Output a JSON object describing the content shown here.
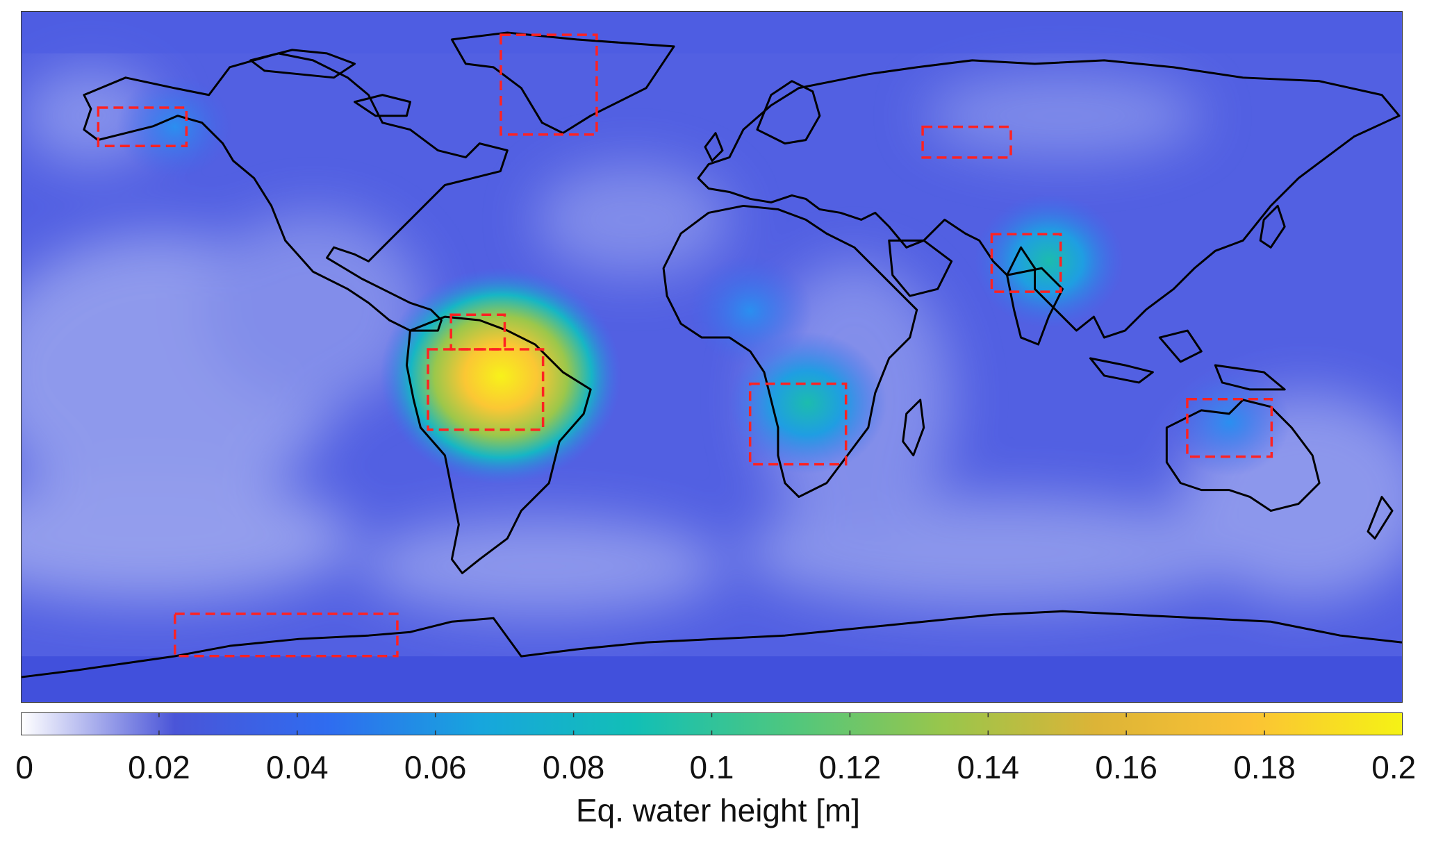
{
  "map": {
    "projection": "equirectangular",
    "extent": {
      "lon": [
        -180,
        180
      ],
      "lat": [
        -90,
        90
      ]
    },
    "field_name": "equivalent water height",
    "colormap": "parula (white to blue to yellow)",
    "background_value": 0.02,
    "hotspots": [
      {
        "region": "Amazon basin",
        "lon": -55,
        "lat": -5,
        "value": 0.19
      },
      {
        "region": "Ganges-Brahmaputra",
        "lon": 88,
        "lat": 25,
        "value": 0.08
      },
      {
        "region": "Zambezi basin",
        "lon": 25,
        "lat": -12,
        "value": 0.09
      },
      {
        "region": "Sahel",
        "lon": 10,
        "lat": 12,
        "value": 0.05
      },
      {
        "region": "Northern Australia",
        "lon": 135,
        "lat": -17,
        "value": 0.045
      },
      {
        "region": "Alaska",
        "lon": -140,
        "lat": 60,
        "value": 0.04
      }
    ],
    "dashed_boxes": [
      {
        "region": "Alaska",
        "lon": [
          -160,
          -137
        ],
        "lat": [
          55,
          65
        ],
        "color": "#ff2222"
      },
      {
        "region": "Greenland",
        "lon": [
          -55,
          -30
        ],
        "lat": [
          58,
          84
        ],
        "color": "#ff2222"
      },
      {
        "region": "Western Siberia",
        "lon": [
          55,
          78
        ],
        "lat": [
          52,
          60
        ],
        "color": "#ff2222"
      },
      {
        "region": "Orinoco",
        "lon": [
          -68,
          -54
        ],
        "lat": [
          2,
          11
        ],
        "color": "#ff2222"
      },
      {
        "region": "Amazon",
        "lon": [
          -74,
          -44
        ],
        "lat": [
          -19,
          2
        ],
        "color": "#ff2222"
      },
      {
        "region": "Zambezi",
        "lon": [
          10,
          35
        ],
        "lat": [
          -28,
          -7
        ],
        "color": "#ff2222"
      },
      {
        "region": "Ganges",
        "lon": [
          73,
          91
        ],
        "lat": [
          17,
          32
        ],
        "color": "#ff2222"
      },
      {
        "region": "Northern Australia",
        "lon": [
          124,
          146
        ],
        "lat": [
          -26,
          -11
        ],
        "color": "#ff2222"
      },
      {
        "region": "West Antarctica",
        "lon": [
          -140,
          -82
        ],
        "lat": [
          -78,
          -67
        ],
        "color": "#ff2222"
      }
    ]
  },
  "colorbar": {
    "min": 0,
    "max": 0.2,
    "ticks": [
      "0",
      "0.02",
      "0.04",
      "0.06",
      "0.08",
      "0.1",
      "0.12",
      "0.14",
      "0.16",
      "0.18",
      "0.2"
    ],
    "tick_values": [
      0,
      0.02,
      0.04,
      0.06,
      0.08,
      0.1,
      0.12,
      0.14,
      0.16,
      0.18,
      0.2
    ],
    "label": "Eq. water height [m]",
    "stops": [
      "#ffffff",
      "#4a55d8",
      "#2f6cf0",
      "#17a6dd",
      "#12bfb6",
      "#4ec77f",
      "#98c64c",
      "#dcb437",
      "#fbc235",
      "#f5f215"
    ]
  }
}
